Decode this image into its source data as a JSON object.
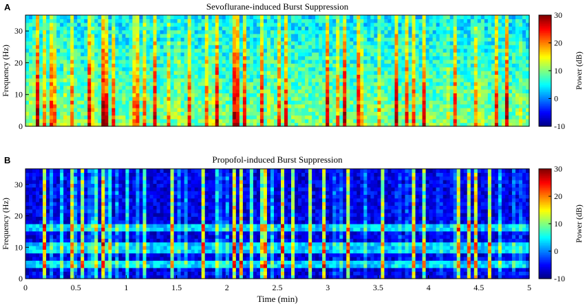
{
  "figure": {
    "time_label": "Time (min)",
    "freq_label": "Frequency (Hz)",
    "colorbar_label": "Power (dB)"
  },
  "chart_data": [
    {
      "panel": "A",
      "type": "heatmap",
      "title": "Sevoflurane-induced Burst Suppression",
      "xlabel": "",
      "ylabel": "Frequency (Hz)",
      "xlim": [
        0,
        5
      ],
      "ylim": [
        0,
        35
      ],
      "yticks": [
        0,
        10,
        20,
        30
      ],
      "xticks": [],
      "colorbar": {
        "label": "Power (dB)",
        "range": [
          -10,
          30
        ],
        "ticks": [
          -10,
          0,
          10,
          20,
          30
        ],
        "colormap": "jet"
      },
      "background_power_db": 7,
      "burst_times_min": [
        0.07,
        0.12,
        0.18,
        0.25,
        0.3,
        0.41,
        0.47,
        0.63,
        0.68,
        0.77,
        0.8,
        0.88,
        1.07,
        1.12,
        1.19,
        1.28,
        1.43,
        1.51,
        1.62,
        1.79,
        1.85,
        1.9,
        2.07,
        2.11,
        2.17,
        2.34,
        2.43,
        2.51,
        2.58,
        3.0,
        3.09,
        3.17,
        3.3,
        3.35,
        3.52,
        3.68,
        3.79,
        3.86,
        3.95,
        4.18,
        4.27,
        4.46,
        4.52,
        4.68,
        4.78,
        4.9
      ],
      "burst_peak_power_db": 26
    },
    {
      "panel": "B",
      "type": "heatmap",
      "title": "Propofol-induced Burst Suppression",
      "xlabel": "Time (min)",
      "ylabel": "Frequency (Hz)",
      "xlim": [
        0,
        5
      ],
      "ylim": [
        0,
        35
      ],
      "yticks": [
        0,
        10,
        20,
        30
      ],
      "xticks": [
        0,
        0.5,
        1,
        1.5,
        2,
        2.5,
        3,
        3.5,
        4,
        4.5,
        5
      ],
      "colorbar": {
        "label": "Power (dB)",
        "range": [
          -10,
          30
        ],
        "ticks": [
          -10,
          0,
          10,
          20,
          30
        ],
        "colormap": "jet"
      },
      "background_power_db": -6,
      "line_noise_freqs_hz": [
        5,
        10,
        16
      ],
      "burst_times_min": [
        0.18,
        0.19,
        0.27,
        0.37,
        0.46,
        0.51,
        0.56,
        0.62,
        0.68,
        0.71,
        0.77,
        0.79,
        0.83,
        0.92,
        1.0,
        1.1,
        1.19,
        1.46,
        1.51,
        1.58,
        1.76,
        1.89,
        1.95,
        1.99,
        2.07,
        2.14,
        2.25,
        2.34,
        2.38,
        2.46,
        2.55,
        2.66,
        2.82,
        2.96,
        3.08,
        3.12,
        3.2,
        3.36,
        3.54,
        3.7,
        3.8,
        3.85,
        3.95,
        4.11,
        4.25,
        4.3,
        4.4,
        4.47,
        4.61,
        4.72,
        4.86,
        4.93
      ],
      "burst_peak_power_db": 18
    }
  ]
}
